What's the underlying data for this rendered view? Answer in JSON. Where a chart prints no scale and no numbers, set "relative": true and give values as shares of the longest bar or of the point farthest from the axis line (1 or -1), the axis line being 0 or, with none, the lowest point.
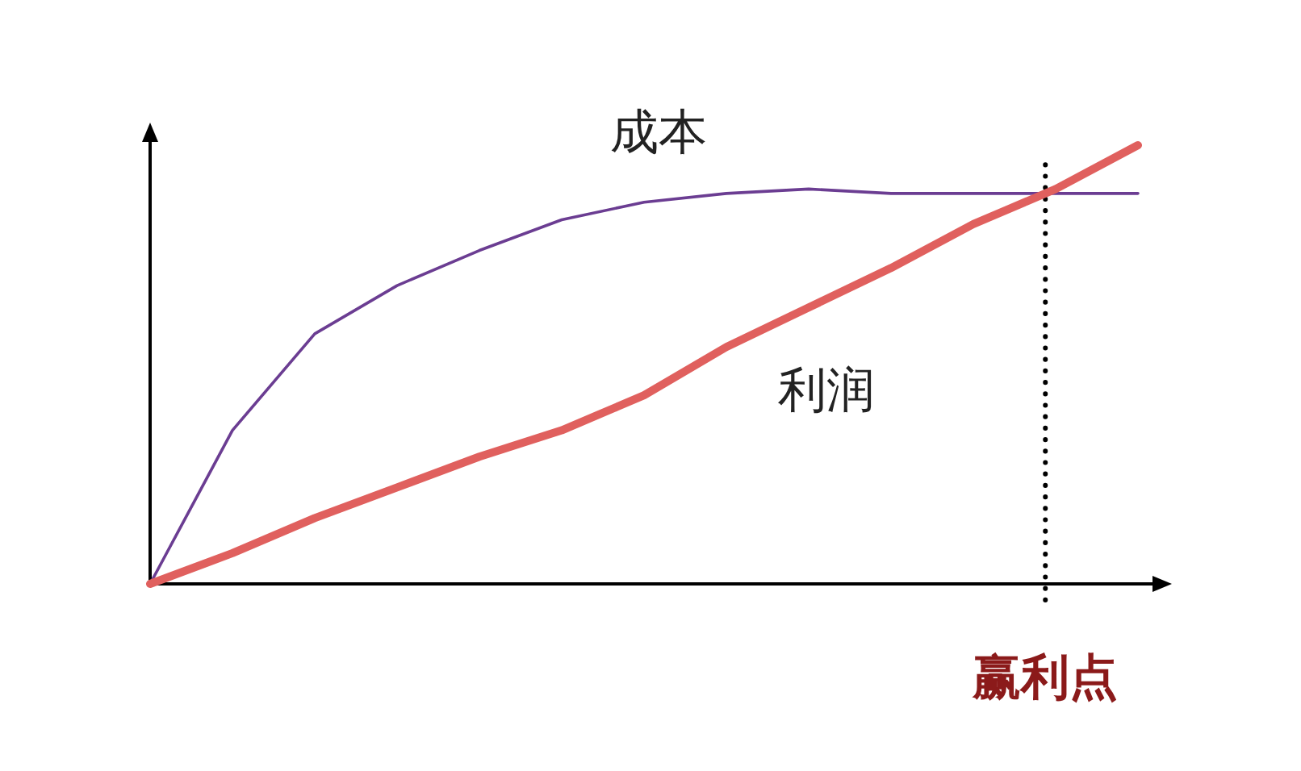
{
  "chart_data": {
    "type": "line",
    "relative": true,
    "categories": [
      null,
      null,
      null,
      null,
      null,
      null,
      null,
      null,
      null,
      null,
      null,
      null,
      null
    ],
    "series": [
      {
        "name": "成本",
        "color": "#6b3d92",
        "values": [
          0,
          0.35,
          0.57,
          0.68,
          0.76,
          0.83,
          0.87,
          0.89,
          0.9,
          0.89,
          0.89,
          0.89,
          0.89
        ]
      },
      {
        "name": "利润",
        "color": "#e0605e",
        "values": [
          0,
          0.07,
          0.15,
          0.22,
          0.29,
          0.35,
          0.43,
          0.54,
          0.63,
          0.72,
          0.82,
          0.9,
          1
        ]
      }
    ],
    "annotations": [
      "赢利点"
    ],
    "grid": false,
    "marker": "none",
    "line_style": "solid"
  }
}
